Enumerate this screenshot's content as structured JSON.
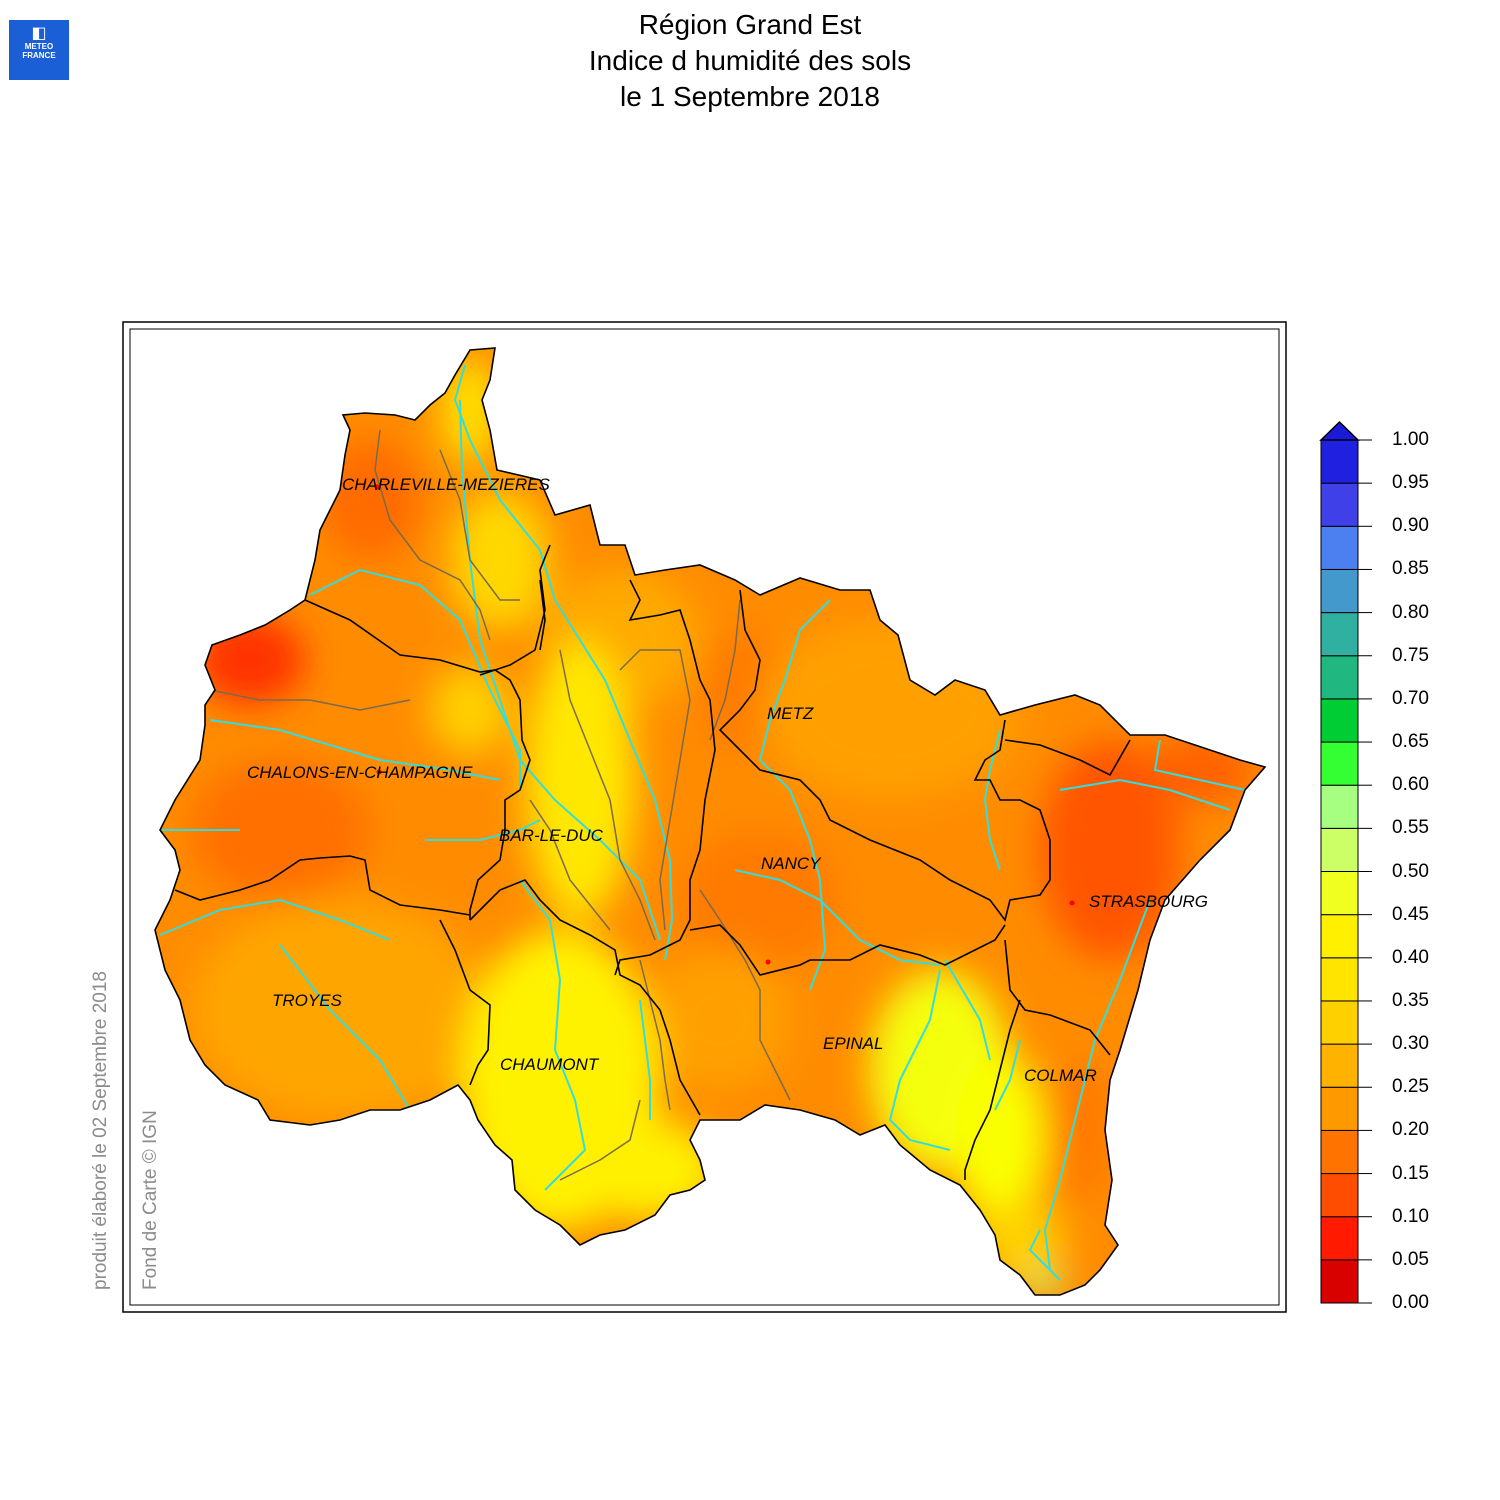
{
  "logo": {
    "line1": "METEO",
    "line2": "FRANCE"
  },
  "title": {
    "line1": "Région Grand Est",
    "line2": "Indice d humidité des sols",
    "line3": "le 1 Septembre 2018"
  },
  "credits": {
    "produced": "produit élaboré le 02 Septembre 2018",
    "basemap": "Fond de Carte © IGN"
  },
  "cities": [
    {
      "name": "CHARLEVILLE-MEZIERES"
    },
    {
      "name": "CHALONS-EN-CHAMPAGNE"
    },
    {
      "name": "BAR-LE-DUC"
    },
    {
      "name": "METZ"
    },
    {
      "name": "NANCY"
    },
    {
      "name": "STRASBOURG"
    },
    {
      "name": "TROYES"
    },
    {
      "name": "CHAUMONT"
    },
    {
      "name": "EPINAL"
    },
    {
      "name": "COLMAR"
    }
  ],
  "colorscale": {
    "ticks": [
      "0.00",
      "0.05",
      "0.10",
      "0.15",
      "0.20",
      "0.25",
      "0.30",
      "0.35",
      "0.40",
      "0.45",
      "0.50",
      "0.55",
      "0.60",
      "0.65",
      "0.70",
      "0.75",
      "0.80",
      "0.85",
      "0.90",
      "0.95",
      "1.00"
    ],
    "colors": [
      "#d90000",
      "#ff1a00",
      "#ff4d00",
      "#ff7300",
      "#ff9900",
      "#ffb300",
      "#ffd000",
      "#ffe400",
      "#fff000",
      "#f0ff20",
      "#ccff66",
      "#a6ff80",
      "#33ff33",
      "#00cc33",
      "#20b880",
      "#30b0a0",
      "#4499cc",
      "#4c7ff0",
      "#4040e8",
      "#2020e0"
    ],
    "overflow_color": "#1a1ad8"
  },
  "map_colors": {
    "rivers": "#33dddd",
    "borders": "#000000",
    "subborders": "#7a6a4a"
  }
}
